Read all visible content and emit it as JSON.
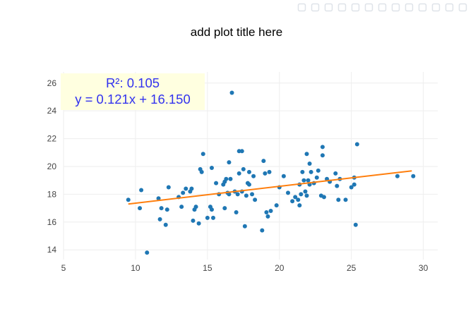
{
  "modebar": {
    "icons": [
      "camera-icon",
      "zoom-icon",
      "pan-icon",
      "box-select-icon",
      "lasso-select-icon",
      "zoom-in-icon",
      "zoom-out-icon",
      "autoscale-icon",
      "reset-axes-icon",
      "spike-lines-icon",
      "hover-closest-icon",
      "hover-compare-icon",
      "plotly-logo-icon"
    ]
  },
  "colors": {
    "points": "#1f77b4",
    "fit_line": "#ff7f0e",
    "annotation_text": "#3333ee",
    "annotation_bg": "#ffffe0",
    "grid": "#eeeeee"
  },
  "chart_data": {
    "type": "scatter",
    "title": "add plot title here",
    "xlabel": "",
    "ylabel": "",
    "xlim": [
      5,
      31
    ],
    "ylim": [
      13.3,
      26.8
    ],
    "x_ticks": [
      5,
      10,
      15,
      20,
      25,
      30
    ],
    "y_ticks": [
      14,
      16,
      18,
      20,
      22,
      24,
      26
    ],
    "grid": true,
    "annotation": {
      "r2": "R²: 0.105",
      "equation": "y = 0.121x + 16.150"
    },
    "fit_line": {
      "slope": 0.121,
      "intercept": 16.15,
      "x_range": [
        9.5,
        29.2
      ]
    },
    "points": [
      [
        9.5,
        17.6
      ],
      [
        10.3,
        17.0
      ],
      [
        10.4,
        18.3
      ],
      [
        10.8,
        13.8
      ],
      [
        11.6,
        17.7
      ],
      [
        11.7,
        16.2
      ],
      [
        11.8,
        17.0
      ],
      [
        12.1,
        15.8
      ],
      [
        12.2,
        16.9
      ],
      [
        12.3,
        18.5
      ],
      [
        13.0,
        17.8
      ],
      [
        13.2,
        17.1
      ],
      [
        13.3,
        18.1
      ],
      [
        13.5,
        18.4
      ],
      [
        13.8,
        18.2
      ],
      [
        13.9,
        18.4
      ],
      [
        14.0,
        16.1
      ],
      [
        14.1,
        16.9
      ],
      [
        14.2,
        17.1
      ],
      [
        14.4,
        15.9
      ],
      [
        14.5,
        19.8
      ],
      [
        14.6,
        19.6
      ],
      [
        14.7,
        20.9
      ],
      [
        15.0,
        16.3
      ],
      [
        15.2,
        17.1
      ],
      [
        15.3,
        16.9
      ],
      [
        15.3,
        19.9
      ],
      [
        15.4,
        16.3
      ],
      [
        15.6,
        18.8
      ],
      [
        15.8,
        18.0
      ],
      [
        16.1,
        18.7
      ],
      [
        16.2,
        17.0
      ],
      [
        16.2,
        18.9
      ],
      [
        16.3,
        19.1
      ],
      [
        16.4,
        18.1
      ],
      [
        16.5,
        18.0
      ],
      [
        16.5,
        20.3
      ],
      [
        16.6,
        19.1
      ],
      [
        16.7,
        25.3
      ],
      [
        16.9,
        18.2
      ],
      [
        17.0,
        16.7
      ],
      [
        17.1,
        18.0
      ],
      [
        17.2,
        19.5
      ],
      [
        17.2,
        21.1
      ],
      [
        17.4,
        18.2
      ],
      [
        17.4,
        21.1
      ],
      [
        17.5,
        19.8
      ],
      [
        17.6,
        15.7
      ],
      [
        17.7,
        17.9
      ],
      [
        17.8,
        18.8
      ],
      [
        17.9,
        19.6
      ],
      [
        17.9,
        18.7
      ],
      [
        18.1,
        18.0
      ],
      [
        18.2,
        19.3
      ],
      [
        18.3,
        17.6
      ],
      [
        18.8,
        15.4
      ],
      [
        18.9,
        20.4
      ],
      [
        19.0,
        19.5
      ],
      [
        19.1,
        16.7
      ],
      [
        19.2,
        16.4
      ],
      [
        19.3,
        19.6
      ],
      [
        19.4,
        16.8
      ],
      [
        19.8,
        17.2
      ],
      [
        20.0,
        18.5
      ],
      [
        20.3,
        19.3
      ],
      [
        20.6,
        18.1
      ],
      [
        20.9,
        17.5
      ],
      [
        21.1,
        17.8
      ],
      [
        21.3,
        17.6
      ],
      [
        21.4,
        17.2
      ],
      [
        21.4,
        18.7
      ],
      [
        21.5,
        18.0
      ],
      [
        21.6,
        19.6
      ],
      [
        21.7,
        19.0
      ],
      [
        21.8,
        18.2
      ],
      [
        21.9,
        17.9
      ],
      [
        21.9,
        20.9
      ],
      [
        22.0,
        19.0
      ],
      [
        22.1,
        20.2
      ],
      [
        22.1,
        18.7
      ],
      [
        22.2,
        19.6
      ],
      [
        22.4,
        18.8
      ],
      [
        22.6,
        19.2
      ],
      [
        22.7,
        19.7
      ],
      [
        22.9,
        17.9
      ],
      [
        23.0,
        21.4
      ],
      [
        23.0,
        20.8
      ],
      [
        23.1,
        17.8
      ],
      [
        23.3,
        19.1
      ],
      [
        23.5,
        18.9
      ],
      [
        23.9,
        19.5
      ],
      [
        24.0,
        18.6
      ],
      [
        24.1,
        17.6
      ],
      [
        24.2,
        19.1
      ],
      [
        24.6,
        17.6
      ],
      [
        25.0,
        18.5
      ],
      [
        25.2,
        18.7
      ],
      [
        25.2,
        19.2
      ],
      [
        25.3,
        15.8
      ],
      [
        25.4,
        21.6
      ],
      [
        28.2,
        19.3
      ],
      [
        29.3,
        19.3
      ]
    ]
  }
}
